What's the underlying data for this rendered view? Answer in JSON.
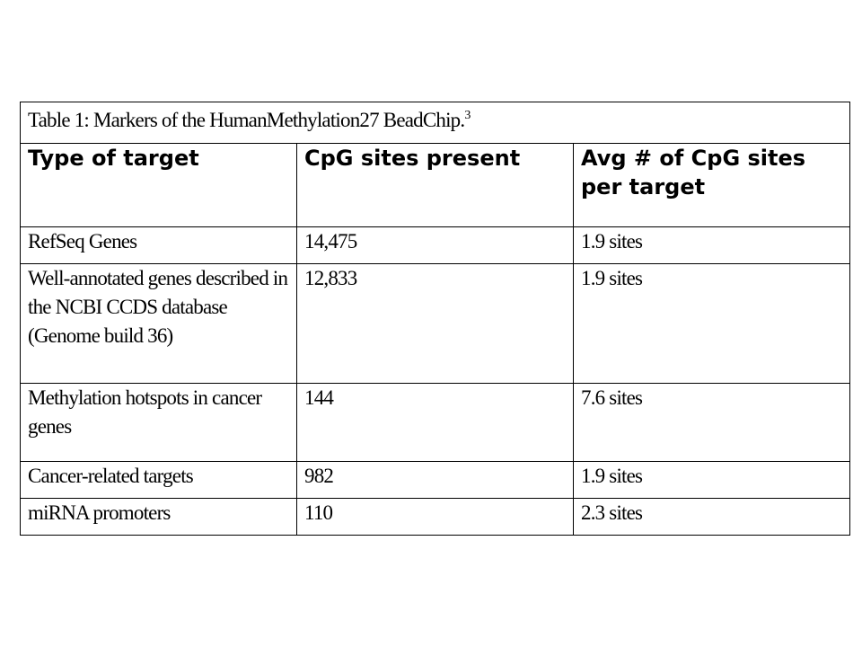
{
  "table": {
    "caption": "Table 1:  Markers of the HumanMethylation27 BeadChip.",
    "caption_superscript": "3",
    "headers": [
      "Type of target",
      "CpG sites present",
      "Avg # of CpG sites per target"
    ],
    "rows": [
      [
        "RefSeq Genes",
        "14,475",
        "1.9 sites"
      ],
      [
        "Well-annotated genes described in the NCBI CCDS database (Genome build 36)",
        "12,833",
        "1.9 sites"
      ],
      [
        "Methylation hotspots in cancer genes",
        "144",
        "7.6 sites"
      ],
      [
        "Cancer-related targets",
        "982",
        "1.9 sites"
      ],
      [
        "miRNA promoters",
        "110",
        "2.3 sites"
      ]
    ]
  }
}
